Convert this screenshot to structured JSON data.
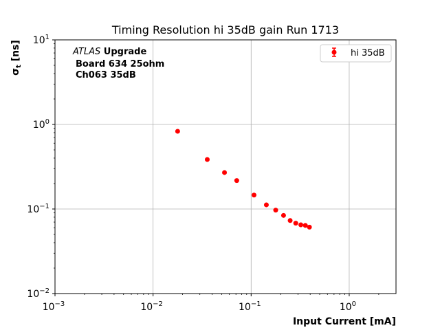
{
  "chart_data": {
    "type": "scatter",
    "title": "Timing Resolution hi 35dB gain Run 1713",
    "xlabel": "Input Current [mA]",
    "ylabel": "σt [ns]",
    "ylabel_main": "σ",
    "ylabel_sub": "t",
    "ylabel_unit": " [ns]",
    "xscale": "log",
    "yscale": "log",
    "xlim": [
      0.001,
      3
    ],
    "ylim": [
      0.01,
      10
    ],
    "grid": "major",
    "legend_position": "top-right",
    "x_tick_labels": [
      {
        "value": 0.001,
        "base": "10",
        "exp": "−3"
      },
      {
        "value": 0.01,
        "base": "10",
        "exp": "−2"
      },
      {
        "value": 0.1,
        "base": "10",
        "exp": "−1"
      },
      {
        "value": 1,
        "base": "10",
        "exp": "0"
      }
    ],
    "y_tick_labels": [
      {
        "value": 0.01,
        "base": "10",
        "exp": "−2"
      },
      {
        "value": 0.1,
        "base": "10",
        "exp": "−1"
      },
      {
        "value": 1,
        "base": "10",
        "exp": "0"
      },
      {
        "value": 10,
        "base": "10",
        "exp": "1"
      }
    ],
    "annotation": {
      "line1_italic": "ATLAS",
      "line1_bold": " Upgrade",
      "line2": "Board 634 25ohm",
      "line3": "Ch063 35dB"
    },
    "series": [
      {
        "name": "hi 35dB",
        "color": "#ff0000",
        "marker": "circle",
        "points": [
          {
            "x": 0.0178,
            "y": 0.83
          },
          {
            "x": 0.0357,
            "y": 0.385
          },
          {
            "x": 0.0535,
            "y": 0.27
          },
          {
            "x": 0.0713,
            "y": 0.217
          },
          {
            "x": 0.107,
            "y": 0.146
          },
          {
            "x": 0.143,
            "y": 0.112
          },
          {
            "x": 0.178,
            "y": 0.097
          },
          {
            "x": 0.214,
            "y": 0.084
          },
          {
            "x": 0.25,
            "y": 0.073
          },
          {
            "x": 0.285,
            "y": 0.068
          },
          {
            "x": 0.321,
            "y": 0.065
          },
          {
            "x": 0.357,
            "y": 0.064
          },
          {
            "x": 0.393,
            "y": 0.061
          }
        ]
      }
    ]
  }
}
